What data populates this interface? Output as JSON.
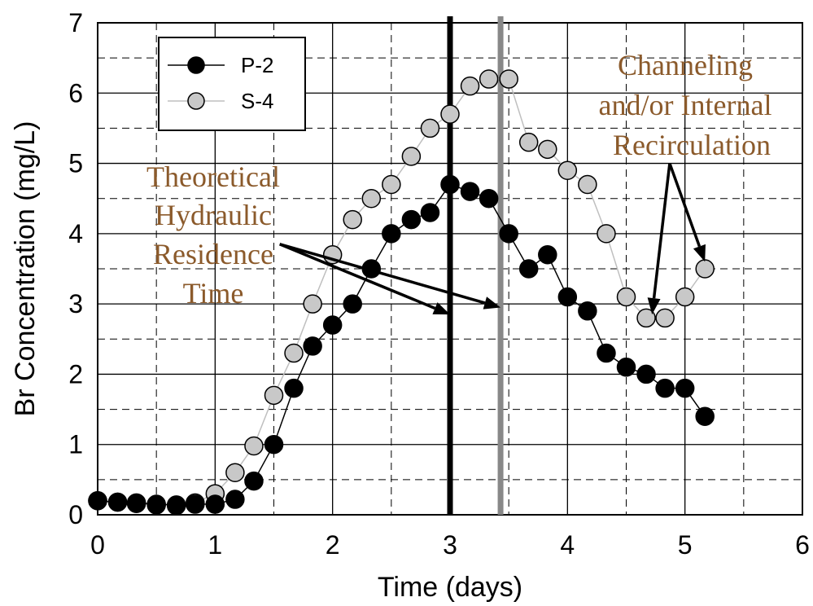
{
  "chart_data": {
    "type": "scatter",
    "title": "",
    "xlabel": "Time (days)",
    "ylabel": "Br Concentration (mg/L)",
    "xlim": [
      0,
      6
    ],
    "ylim": [
      0,
      7
    ],
    "xticks": [
      "0",
      "1",
      "2",
      "3",
      "4",
      "5",
      "6"
    ],
    "yticks": [
      "0",
      "1",
      "2",
      "3",
      "4",
      "5",
      "6",
      "7"
    ],
    "grid": "solid major, dashed minor",
    "legend_position": "top-left",
    "series": [
      {
        "name": "P-2",
        "marker_color": "#000000",
        "line_color": "#000000",
        "x": [
          0,
          0.17,
          0.33,
          0.5,
          0.67,
          0.83,
          1.0,
          1.17,
          1.33,
          1.5,
          1.67,
          1.83,
          2.0,
          2.17,
          2.33,
          2.5,
          2.67,
          2.83,
          3.0,
          3.17,
          3.33,
          3.5,
          3.67,
          3.83,
          4.0,
          4.17,
          4.33,
          4.5,
          4.67,
          4.83,
          5.0,
          5.17
        ],
        "y": [
          0.2,
          0.18,
          0.17,
          0.15,
          0.14,
          0.15,
          0.15,
          0.22,
          0.48,
          1.0,
          1.8,
          2.4,
          2.7,
          3.0,
          3.5,
          4.0,
          4.2,
          4.3,
          4.7,
          4.6,
          4.5,
          4.0,
          3.5,
          3.7,
          3.1,
          2.9,
          2.3,
          2.1,
          2.0,
          1.8,
          1.8,
          1.4
        ]
      },
      {
        "name": "S-4",
        "marker_color": "#c8c8c8",
        "line_color": "#bfbfbf",
        "x": [
          0,
          0.17,
          0.33,
          0.5,
          0.67,
          0.83,
          1.0,
          1.17,
          1.33,
          1.5,
          1.67,
          1.83,
          2.0,
          2.17,
          2.33,
          2.5,
          2.67,
          2.83,
          3.0,
          3.17,
          3.33,
          3.5,
          3.67,
          3.83,
          4.0,
          4.17,
          4.33,
          4.5,
          4.67,
          4.83,
          5.0,
          5.17
        ],
        "y": [
          0.2,
          0.18,
          0.16,
          0.14,
          0.13,
          0.17,
          0.3,
          0.6,
          0.98,
          1.7,
          2.3,
          3.0,
          3.7,
          4.2,
          4.5,
          4.7,
          5.1,
          5.5,
          5.7,
          6.1,
          6.2,
          6.2,
          5.3,
          5.2,
          4.9,
          4.7,
          4.0,
          3.1,
          2.8,
          2.8,
          3.1,
          3.5
        ]
      }
    ],
    "vertical_lines": [
      {
        "x": 3.0,
        "color": "#000000"
      },
      {
        "x": 3.43,
        "color": "#888888"
      }
    ],
    "annotations": [
      {
        "lines": [
          "Theoretical",
          "Hydraulic",
          "Residence",
          "Time"
        ],
        "color": "#8b5a2b",
        "arrow_from": [
          1.55,
          3.85
        ],
        "arrow_targets": [
          [
            3.0,
            2.85
          ],
          [
            3.43,
            2.95
          ]
        ]
      },
      {
        "lines": [
          "Channeling",
          "and/or Internal",
          "Recirculation"
        ],
        "color": "#8b5a2b",
        "arrow_from": [
          4.87,
          5.0
        ],
        "arrow_targets": [
          [
            4.72,
            2.85
          ],
          [
            5.17,
            3.6
          ]
        ]
      }
    ]
  }
}
